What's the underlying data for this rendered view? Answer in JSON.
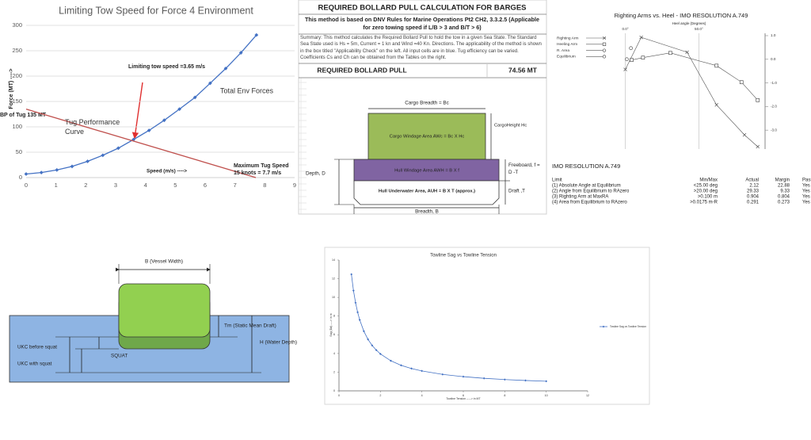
{
  "chart_data": [
    {
      "type": "line",
      "title": "Limiting Tow Speed for Force 4 Environment",
      "xlim": [
        0,
        9
      ],
      "xticks": [
        0,
        1,
        2,
        3,
        4,
        5,
        6,
        7,
        8,
        9
      ],
      "ylim": [
        0,
        300
      ],
      "yticks": [
        0,
        50,
        100,
        150,
        200,
        250,
        300
      ],
      "grid": true,
      "series": [
        {
          "name": "Total Env Forces",
          "color": "#4472c4",
          "marker": "diamond",
          "x": [
            0,
            0.51,
            1.03,
            1.54,
            2.06,
            2.57,
            3.09,
            3.6,
            4.12,
            4.63,
            5.14,
            5.66,
            6.17,
            6.69,
            7.2,
            7.72
          ],
          "values": [
            7,
            10,
            15,
            22,
            32,
            44,
            58,
            75,
            93,
            113,
            135,
            158,
            186,
            215,
            246,
            281
          ]
        },
        {
          "name": "Tug Performance Curve",
          "color": "#c0504d",
          "x": [
            0,
            7.7
          ],
          "values": [
            135,
            0
          ]
        }
      ],
      "annotations": [
        "Force (MT) ---->",
        "BP of Tug 135 MT",
        "Limiting tow speed =3.65 m/s",
        "Speed (m/s) ---->",
        "Maximum Tug Speed 15 knots = 7.7 m/s"
      ]
    },
    {
      "type": "line",
      "title": "Righting Arms vs. Heel - IMO RESOLUTION  A.749",
      "xlabel": "Heel angle (Degrees)",
      "xlim": [
        -10,
        95
      ],
      "xticks": [
        {
          "value": 0,
          "label": "0.0°"
        },
        {
          "value": 50,
          "label": "50.0°"
        }
      ],
      "xgrid": true,
      "ylim": [
        -3.8,
        1.1
      ],
      "yticks": [
        {
          "value": 1,
          "label": "1.0"
        },
        {
          "value": 0,
          "label": "0.0"
        },
        {
          "value": -1,
          "label": "-1.0"
        },
        {
          "value": -2,
          "label": "-2.0"
        },
        {
          "value": -3,
          "label": "-3.0"
        }
      ],
      "legend": "left",
      "series": [
        {
          "name": "Righting Arm",
          "color": "#555555",
          "marker": "x",
          "x": [
            0,
            10.8,
            42,
            62,
            81,
            90
          ],
          "values": [
            -0.43,
            0.93,
            0.3,
            -1.93,
            -3.2,
            -3.7
          ]
        },
        {
          "name": "Heeling Arm",
          "color": "#555555",
          "marker": "square",
          "x": [
            4.3,
            12,
            30.6,
            62,
            79,
            90
          ],
          "values": [
            -0.03,
            0.07,
            0.27,
            -0.27,
            -0.97,
            -1.73
          ]
        },
        {
          "name": "R. Area",
          "color": "#555555",
          "marker": "circle",
          "x": [
            3.8
          ],
          "values": [
            0.47
          ]
        },
        {
          "name": "Equilibrium",
          "color": "#555555",
          "marker": "circle",
          "x": [
            1
          ],
          "values": [
            0
          ]
        }
      ]
    },
    {
      "type": "line",
      "title": "Towline Sag vs Towline Tension",
      "xlabel": "Towline Tension -----> in MT",
      "ylabel": "Sag (Dd) ----> in m",
      "xlim": [
        0,
        12
      ],
      "xticks": [
        0,
        2,
        4,
        6,
        8,
        10,
        12
      ],
      "ylim": [
        0,
        14
      ],
      "yticks": [
        0,
        2,
        4,
        6,
        8,
        10,
        12,
        14
      ],
      "legend": "right",
      "series": [
        {
          "name": "Towline Sag vs Towline Tension",
          "color": "#4472c4",
          "marker": "diamond",
          "x": [
            0.6,
            0.7,
            0.8,
            0.9,
            1.0,
            1.2,
            1.4,
            1.6,
            1.8,
            2.0,
            2.5,
            3,
            3.5,
            4,
            5,
            6,
            7,
            8,
            9,
            10
          ],
          "values": [
            12.47,
            10.73,
            9.43,
            8.41,
            7.6,
            6.38,
            5.51,
            4.86,
            4.36,
            3.95,
            3.22,
            2.73,
            2.39,
            2.13,
            1.76,
            1.52,
            1.34,
            1.21,
            1.11,
            1.03
          ]
        }
      ]
    }
  ],
  "bollard_sheet": {
    "title": "REQUIRED BOLLARD PULL CALCULATION FOR BARGES",
    "subtitle": "This method is based on DNV Rules for Marine Operations Pt2 CH2, 3.3.2.5 (Applicable for zero towing speed if L/B > 3 and B/T > 6)",
    "summary": "Summary: This method calculates the Required Bollard Pull to hold the tow in a given Sea State. The Standard Sea State used is Hs = 5m, Current = 1 kn and Wind =40 Kn. Directions. The applicability of the method is shown in the box titled \"Applicability Check\" on the left. All input cells are in blue. Tug efficiency can be varied. Coefficients Cs and Ch can be obtained from the Tables on the right.",
    "result_label": "REQUIRED BOLLARD PULL",
    "result_value": "74.56 MT"
  },
  "barge_diagram": {
    "cargo_breadth": "Cargo Breadth = Bc",
    "cargo_height": "CargoHeight Hc",
    "cargo_area": "Cargo Windage Area AWc = Bc X Hc",
    "hull_area": "Hull Windage Area AWH = B X f",
    "underwater_area": "Hull Underwater Area, AUH = B X T (approx.)",
    "depth": "Depth, D",
    "freeboard": "Freeboard, f = D -T",
    "draft": "Draft ,T",
    "breadth": "Breadth, B"
  },
  "imo_table": {
    "title": "IMO RESOLUTION   A.749",
    "header": [
      "Limit",
      "Min/Max",
      "Actual",
      "Margin",
      "Pass"
    ],
    "rows": [
      [
        "(1) Absolute Angle at Equilibrium",
        "<25.00 deg",
        "2.12",
        "22.88",
        "Yes"
      ],
      [
        "(2) Angle from Equilibrium to RAzero",
        ">20.00 deg",
        "29.33",
        "9.33",
        "Yes"
      ],
      [
        "(3) Righting Arm at MaxRA",
        ">0.100 m",
        "0.904",
        "0.804",
        "Yes"
      ],
      [
        "(4) Area from Equilibrium to RAzero",
        ">0.0175 m-R",
        "0.291",
        "0.273",
        "Yes"
      ]
    ]
  },
  "ukc_diagram": {
    "width": "B (Vessel Width)",
    "draft": "Tm (Static  Mean Draft)",
    "depth": "H (Water Depth)",
    "ukc_before": "UKC before squat",
    "ukc_with": "UKC with squat",
    "squat": "SQUAT"
  }
}
